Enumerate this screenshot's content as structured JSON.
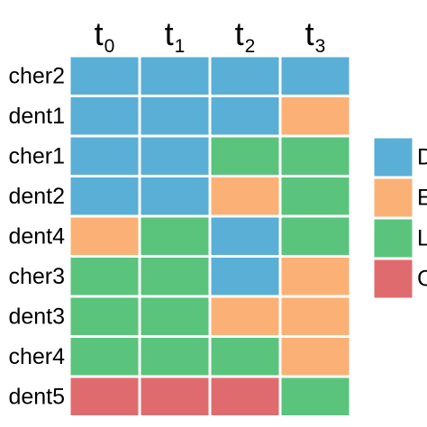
{
  "chart_data": {
    "type": "heatmap",
    "title": "",
    "columns": [
      {
        "base": "t",
        "sub": "0"
      },
      {
        "base": "t",
        "sub": "1"
      },
      {
        "base": "t",
        "sub": "2"
      },
      {
        "base": "t",
        "sub": "3"
      }
    ],
    "rows": [
      "cher2",
      "dent1",
      "cher1",
      "dent2",
      "dent4",
      "cher3",
      "dent3",
      "cher4",
      "dent5"
    ],
    "cells": [
      [
        "D",
        "D",
        "D",
        "D"
      ],
      [
        "D",
        "D",
        "D",
        "E"
      ],
      [
        "D",
        "D",
        "L",
        "L"
      ],
      [
        "D",
        "D",
        "E",
        "L"
      ],
      [
        "E",
        "L",
        "D",
        "L"
      ],
      [
        "L",
        "L",
        "D",
        "E"
      ],
      [
        "L",
        "L",
        "E",
        "E"
      ],
      [
        "L",
        "L",
        "L",
        "E"
      ],
      [
        "C",
        "C",
        "C",
        "L"
      ]
    ],
    "categories": [
      {
        "key": "D",
        "label": "D",
        "color": "#5aafd7"
      },
      {
        "key": "E",
        "label": "E",
        "color": "#fbb176"
      },
      {
        "key": "L",
        "label": "L",
        "color": "#5ac47d"
      },
      {
        "key": "C",
        "label": "C",
        "color": "#e06b6f"
      }
    ],
    "legend_position": "right",
    "grid": false
  }
}
